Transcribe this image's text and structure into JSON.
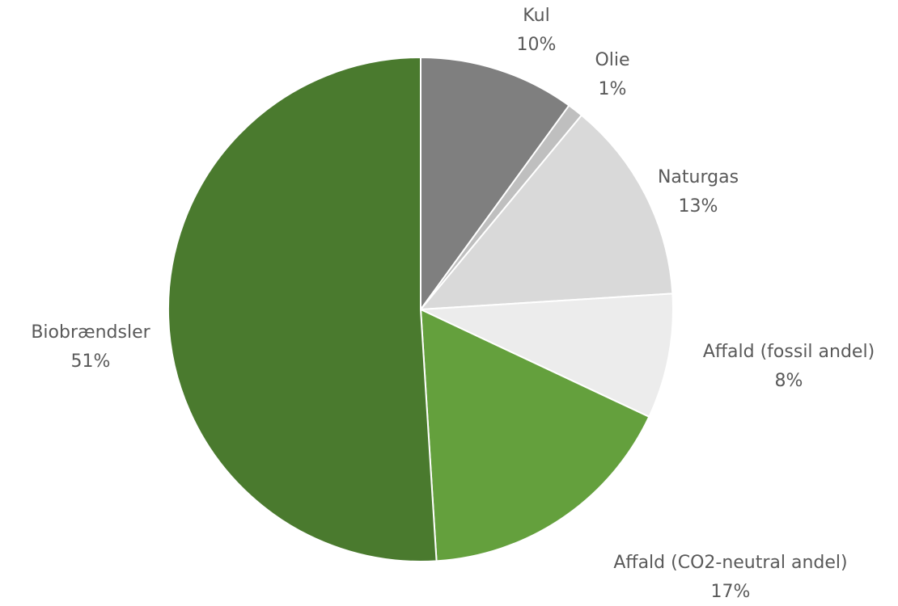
{
  "chart_data": {
    "type": "pie",
    "title": "",
    "start_angle_deg": 0,
    "direction": "clockwise",
    "slices": [
      {
        "label": "Kul",
        "value": 10,
        "value_label": "10%",
        "color": "#7f7f7f"
      },
      {
        "label": "Olie",
        "value": 1,
        "value_label": "1%",
        "color": "#bfbfbf"
      },
      {
        "label": "Naturgas",
        "value": 13,
        "value_label": "13%",
        "color": "#d9d9d9"
      },
      {
        "label": "Affald (fossil andel)",
        "value": 8,
        "value_label": "8%",
        "color": "#ececec"
      },
      {
        "label": "Affald (CO2-neutral andel)",
        "value": 17,
        "value_label": "17%",
        "color": "#64a03d"
      },
      {
        "label": "Biobrændsler",
        "value": 51,
        "value_label": "51%",
        "color": "#4a7a2e"
      }
    ],
    "slice_border_color": "#ffffff",
    "label_color": "#595959",
    "legend": "none",
    "data_labels": "outside"
  }
}
